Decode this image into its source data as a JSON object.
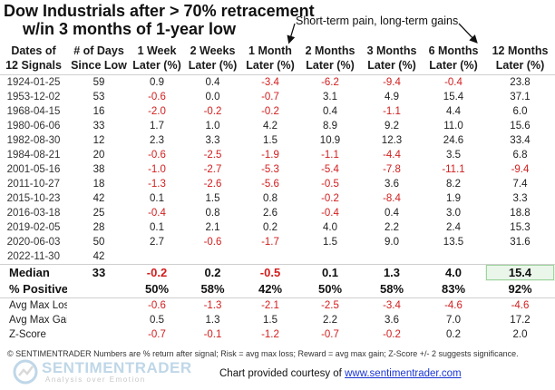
{
  "title_line1": "Dow Industrials after > 70% retracement",
  "title_line2": "w/in 3 months of 1-year low",
  "annotation": "Short-term pain, long-term gains",
  "chart_data": {
    "type": "table",
    "columns": [
      [
        "Dates of",
        "12 Signals"
      ],
      [
        "# of Days",
        "Since Low"
      ],
      [
        "1 Week",
        "Later (%)"
      ],
      [
        "2 Weeks",
        "Later (%)"
      ],
      [
        "1 Month",
        "Later (%)"
      ],
      [
        "2 Months",
        "Later (%)"
      ],
      [
        "3 Months",
        "Later (%)"
      ],
      [
        "6 Months",
        "Later (%)"
      ],
      [
        "12 Months",
        "Later (%)"
      ]
    ],
    "rows": [
      [
        "1924-01-25",
        "59",
        "0.9",
        "0.4",
        "-3.4",
        "-6.2",
        "-9.4",
        "-0.4",
        "23.8"
      ],
      [
        "1953-12-02",
        "53",
        "-0.6",
        "0.0",
        "-0.7",
        "3.1",
        "4.9",
        "15.4",
        "37.1"
      ],
      [
        "1968-04-15",
        "16",
        "-2.0",
        "-0.2",
        "-0.2",
        "0.4",
        "-1.1",
        "4.4",
        "6.0"
      ],
      [
        "1980-06-06",
        "33",
        "1.7",
        "1.0",
        "4.2",
        "8.9",
        "9.2",
        "11.0",
        "15.6"
      ],
      [
        "1982-08-30",
        "12",
        "2.3",
        "3.3",
        "1.5",
        "10.9",
        "12.3",
        "24.6",
        "33.4"
      ],
      [
        "1984-08-21",
        "20",
        "-0.6",
        "-2.5",
        "-1.9",
        "-1.1",
        "-4.4",
        "3.5",
        "6.8"
      ],
      [
        "2001-05-16",
        "38",
        "-1.0",
        "-2.7",
        "-5.3",
        "-5.4",
        "-7.8",
        "-11.1",
        "-9.4"
      ],
      [
        "2011-10-27",
        "18",
        "-1.3",
        "-2.6",
        "-5.6",
        "-0.5",
        "3.6",
        "8.2",
        "7.4"
      ],
      [
        "2015-10-23",
        "42",
        "0.1",
        "1.5",
        "0.8",
        "-0.2",
        "-8.4",
        "1.9",
        "3.3"
      ],
      [
        "2016-03-18",
        "25",
        "-0.4",
        "0.8",
        "2.6",
        "-0.4",
        "0.4",
        "3.0",
        "18.8"
      ],
      [
        "2019-02-05",
        "28",
        "0.1",
        "2.1",
        "0.2",
        "4.0",
        "2.2",
        "2.4",
        "15.3"
      ],
      [
        "2020-06-03",
        "50",
        "2.7",
        "-0.6",
        "-1.7",
        "1.5",
        "9.0",
        "13.5",
        "31.6"
      ],
      [
        "2022-11-30",
        "42",
        "",
        "",
        "",
        "",
        "",
        "",
        ""
      ]
    ],
    "median": {
      "label": "Median",
      "values": [
        "33",
        "-0.2",
        "0.2",
        "-0.5",
        "0.1",
        "1.3",
        "4.0",
        "15.4"
      ]
    },
    "percent_positive": {
      "label": "% Positive",
      "values": [
        "",
        "50%",
        "58%",
        "42%",
        "50%",
        "58%",
        "83%",
        "92%"
      ]
    },
    "avg_max_loss": {
      "label": "Avg Max Loss",
      "values": [
        "",
        "-0.6",
        "-1.3",
        "-2.1",
        "-2.5",
        "-3.4",
        "-4.6",
        "-4.6"
      ]
    },
    "avg_max_gain": {
      "label": "Avg Max Gain",
      "values": [
        "",
        "0.5",
        "1.3",
        "1.5",
        "2.2",
        "3.6",
        "7.0",
        "17.2"
      ]
    },
    "z_score": {
      "label": "Z-Score",
      "values": [
        "",
        "-0.7",
        "-0.1",
        "-1.2",
        "-0.7",
        "-0.2",
        "0.2",
        "2.0"
      ]
    },
    "highlighted_cell": "median.12 Months",
    "negative_color": "#d21e1e"
  },
  "footnote": "© SENTIMENTRADER  Numbers are % return after signal; Risk = avg max loss; Reward = avg max gain; Z-Score +/- 2 suggests significance.",
  "brand": {
    "name": "SENTIMENTRADER",
    "tagline": "Analysis over Emotion"
  },
  "credit": {
    "prefix": "Chart provided courtesy of ",
    "link": "www.sentimentrader.com"
  }
}
